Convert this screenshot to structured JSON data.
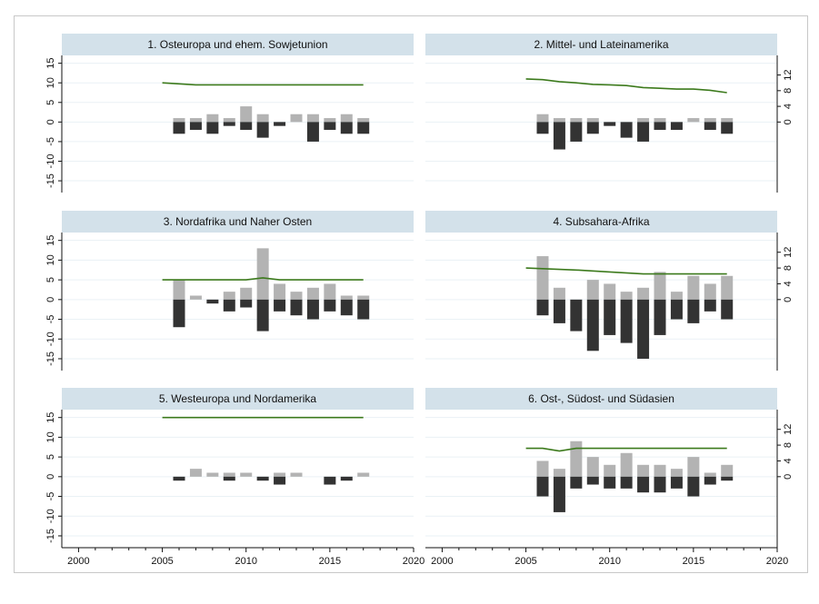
{
  "chart_data": [
    {
      "type": "bar",
      "title": "1. Osteuropa und ehem. Sowjetunion",
      "x": [
        2006,
        2007,
        2008,
        2009,
        2010,
        2011,
        2012,
        2013,
        2014,
        2015,
        2016,
        2017
      ],
      "series": [
        {
          "values": [
            1,
            1,
            2,
            1,
            4,
            2,
            0,
            2,
            2,
            1,
            2,
            1
          ]
        },
        {
          "values": [
            -3,
            -2,
            -3,
            -1,
            -2,
            -4,
            -1,
            0,
            -5,
            -2,
            -3,
            -3
          ]
        },
        {
          "x": [
            2005,
            2007,
            2017
          ],
          "values": [
            10,
            9.5,
            9.5
          ]
        }
      ]
    },
    {
      "type": "bar",
      "title": "2. Mittel- und Lateinamerika",
      "x": [
        2006,
        2007,
        2008,
        2009,
        2010,
        2011,
        2012,
        2013,
        2014,
        2015,
        2016,
        2017
      ],
      "series": [
        {
          "values": [
            2,
            1,
            1,
            1,
            0,
            0,
            1,
            1,
            0,
            1,
            1,
            1
          ]
        },
        {
          "values": [
            -3,
            -7,
            -5,
            -3,
            -1,
            -4,
            -5,
            -2,
            -2,
            0,
            -2,
            -3
          ]
        },
        {
          "x": [
            2005,
            2006,
            2007,
            2008,
            2009,
            2010,
            2011,
            2012,
            2013,
            2014,
            2015,
            2016,
            2017
          ],
          "values": [
            11,
            10.8,
            10.3,
            10,
            9.6,
            9.5,
            9.3,
            8.8,
            8.6,
            8.4,
            8.4,
            8.1,
            7.5
          ]
        }
      ]
    },
    {
      "type": "bar",
      "title": "3. Nordafrika und Naher Osten",
      "x": [
        2006,
        2007,
        2008,
        2009,
        2010,
        2011,
        2012,
        2013,
        2014,
        2015,
        2016,
        2017
      ],
      "series": [
        {
          "values": [
            5,
            1,
            0,
            2,
            3,
            13,
            4,
            2,
            3,
            4,
            1,
            1
          ]
        },
        {
          "values": [
            -7,
            0,
            -1,
            -3,
            -2,
            -8,
            -3,
            -4,
            -5,
            -3,
            -4,
            -5
          ]
        },
        {
          "x": [
            2005,
            2010,
            2011,
            2012,
            2017
          ],
          "values": [
            5,
            5,
            5.5,
            5,
            5
          ]
        }
      ]
    },
    {
      "type": "bar",
      "title": "4. Subsahara-Afrika",
      "x": [
        2006,
        2007,
        2008,
        2009,
        2010,
        2011,
        2012,
        2013,
        2014,
        2015,
        2016,
        2017
      ],
      "series": [
        {
          "values": [
            11,
            3,
            0,
            5,
            4,
            2,
            3,
            7,
            2,
            6,
            4,
            6
          ]
        },
        {
          "values": [
            -4,
            -6,
            -8,
            -13,
            -9,
            -11,
            -15,
            -9,
            -5,
            -6,
            -3,
            -5
          ]
        },
        {
          "x": [
            2005,
            2008,
            2010,
            2012,
            2017
          ],
          "values": [
            8,
            7.5,
            7,
            6.5,
            6.5
          ]
        }
      ]
    },
    {
      "type": "bar",
      "title": "5. Westeuropa und Nordamerika",
      "x": [
        2006,
        2007,
        2008,
        2009,
        2010,
        2011,
        2012,
        2013,
        2014,
        2015,
        2016,
        2017
      ],
      "series": [
        {
          "values": [
            0,
            2,
            1,
            1,
            1,
            0,
            1,
            1,
            0,
            0,
            0,
            1
          ]
        },
        {
          "values": [
            -1,
            0,
            0,
            -1,
            0,
            -1,
            -2,
            0,
            0,
            -2,
            -1,
            0
          ]
        },
        {
          "x": [
            2005,
            2017
          ],
          "values": [
            15,
            15
          ]
        }
      ]
    },
    {
      "type": "bar",
      "title": "6. Ost-, Südost- und Südasien",
      "x": [
        2006,
        2007,
        2008,
        2009,
        2010,
        2011,
        2012,
        2013,
        2014,
        2015,
        2016,
        2017
      ],
      "series": [
        {
          "values": [
            4,
            2,
            9,
            5,
            3,
            6,
            3,
            3,
            2,
            5,
            1,
            3
          ]
        },
        {
          "values": [
            -5,
            -9,
            -3,
            -2,
            -3,
            -3,
            -4,
            -4,
            -3,
            -5,
            -2,
            -1
          ]
        },
        {
          "x": [
            2005,
            2006,
            2007,
            2008,
            2017
          ],
          "values": [
            7.2,
            7.2,
            6.5,
            7.2,
            7.2
          ]
        }
      ]
    }
  ],
  "axes": {
    "x_ticks": [
      "2000",
      "2005",
      "2010",
      "2015",
      "2020"
    ],
    "x_range": [
      1999,
      2020
    ],
    "y_left_ticks": [
      "15",
      "10",
      "5",
      "0",
      "-5",
      "-10",
      "-15"
    ],
    "y_left_range": [
      -18,
      17
    ],
    "y_right_ticks": [
      "12",
      "8",
      "4",
      "0"
    ]
  },
  "colors": {
    "positive_bar": "#b3b3b3",
    "negative_bar": "#333333",
    "line": "#3c7a1c",
    "title_band": "#d3e1ea",
    "grid": "#eaf1f5"
  }
}
